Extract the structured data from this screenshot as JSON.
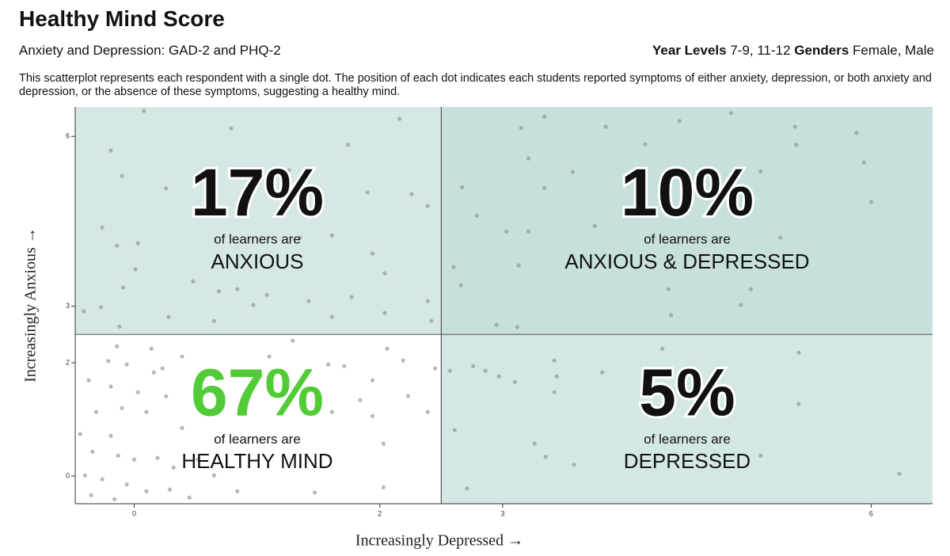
{
  "chart_data": {
    "type": "scatter",
    "title": "Healthy Mind Score",
    "subtitle": "Anxiety and Depression: GAD-2 and PHQ-2",
    "filters": [
      {
        "label": "Year Levels",
        "value": "7-9, 11-12"
      },
      {
        "label": "Genders",
        "value": "Female, Male"
      }
    ],
    "description": "This scatterplot represents each respondent with a single dot. The position of each dot indicates each students reported symptoms of either anxiety, depression, or both anxiety and depression, or the absence of these symptoms, suggesting a healthy mind.",
    "xlabel": "Increasingly Depressed →",
    "ylabel": "Increasingly Anxious →",
    "xlim": [
      -0.48,
      6.5
    ],
    "ylim": [
      -0.49,
      6.52
    ],
    "xticks": [
      0,
      2,
      3,
      6
    ],
    "yticks": [
      0,
      2,
      3,
      6
    ],
    "x_split": 2.5,
    "y_split": 2.5,
    "point_color": "#8a8a8a",
    "quadrants": {
      "positions": [
        "top-left",
        "top-right",
        "bottom-left",
        "bottom-right"
      ],
      "values": [
        17,
        10,
        67,
        5
      ],
      "value_labels": [
        "17%",
        "10%",
        "67%",
        "5%"
      ],
      "captions": [
        "of learners are",
        "of learners are",
        "of learners are",
        "of learners are"
      ],
      "labels": [
        "ANXIOUS",
        "ANXIOUS & DEPRESSED",
        "HEALTHY MIND",
        "DEPRESSED"
      ],
      "colors": [
        "#d6e8e6",
        "#c7e0dd",
        "#ffffff",
        "#d3e7e4"
      ],
      "value_colors": [
        "#111111",
        "#111111",
        "#52cc36",
        "#111111"
      ]
    },
    "x": [
      0.08,
      -0.19,
      -0.1,
      0.26,
      -0.26,
      -0.14,
      0.03,
      0.01,
      -0.09,
      -0.27,
      -0.41,
      -0.12,
      0.28,
      0.48,
      0.69,
      0.84,
      0.97,
      1.08,
      1.42,
      1.61,
      1.74,
      2.16,
      1.9,
      2.26,
      2.39,
      1.61,
      1.94,
      2.04,
      1.77,
      2.39,
      1.35,
      1.26,
      0.79,
      2.42,
      2.04,
      0.65,
      3.34,
      3.15,
      3.84,
      4.44,
      4.86,
      5.38,
      5.39,
      5.88,
      5.94,
      6.0,
      5.1,
      4.16,
      3.57,
      3.21,
      3.34,
      2.67,
      2.79,
      3.03,
      3.21,
      3.75,
      5.26,
      2.6,
      2.66,
      3.13,
      4.35,
      4.37,
      5.02,
      2.95,
      3.12,
      4.94,
      2.57,
      2.76,
      2.86,
      2.97,
      3.1,
      3.42,
      3.44,
      3.42,
      3.81,
      4.3,
      5.41,
      5.41,
      2.61,
      3.26,
      3.35,
      3.58,
      2.71,
      6.23,
      5.1,
      -0.14,
      -0.06,
      -0.21,
      0.14,
      0.39,
      0.16,
      -0.37,
      -0.19,
      0.03,
      0.23,
      -0.31,
      -0.1,
      0.1,
      0.26,
      0.39,
      -0.44,
      -0.19,
      -0.34,
      -0.13,
      0,
      0.19,
      0.32,
      -0.4,
      -0.26,
      -0.06,
      0.1,
      0.29,
      0.45,
      -0.35,
      -0.16,
      0.52,
      0.65,
      0.84,
      0.94,
      1.1,
      1.29,
      1.58,
      1.71,
      1.94,
      2.06,
      2.19,
      2.23,
      2.39,
      1.94,
      1.84,
      2.03,
      1.47,
      1.16,
      1.61,
      2.45,
      2.03
    ],
    "y": [
      6.45,
      5.75,
      5.3,
      5.08,
      4.39,
      4.07,
      4.11,
      3.65,
      3.33,
      2.98,
      2.91,
      2.64,
      2.81,
      3.44,
      3.26,
      3.3,
      3.02,
      3.2,
      3.09,
      2.81,
      5.85,
      6.31,
      5.01,
      4.98,
      4.77,
      4.25,
      3.93,
      3.58,
      3.16,
      3.09,
      4.21,
      5.4,
      6.14,
      2.74,
      2.88,
      2.74,
      6.35,
      6.15,
      6.17,
      6.27,
      6.41,
      6.17,
      5.85,
      6.06,
      5.54,
      4.84,
      5.38,
      5.86,
      5.37,
      5.61,
      5.09,
      5.1,
      4.6,
      4.32,
      4.32,
      4.42,
      4.21,
      3.69,
      3.37,
      3.72,
      3.3,
      2.84,
      3.3,
      2.67,
      2.63,
      3.02,
      1.86,
      1.94,
      1.86,
      1.76,
      1.66,
      2.04,
      1.76,
      1.48,
      1.83,
      2.25,
      2.18,
      1.27,
      0.81,
      0.57,
      0.34,
      0.2,
      -0.22,
      0.04,
      0.36,
      2.29,
      1.97,
      2.03,
      2.25,
      2.11,
      1.83,
      1.69,
      1.58,
      1.48,
      1.9,
      1.13,
      1.2,
      1.13,
      1.41,
      0.85,
      0.74,
      0.71,
      0.43,
      0.36,
      0.29,
      0.32,
      0.15,
      0.01,
      -0.06,
      -0.15,
      -0.27,
      -0.24,
      -0.38,
      -0.34,
      -0.41,
      0.29,
      0.01,
      -0.27,
      1.83,
      2.11,
      2.39,
      1.97,
      1.94,
      1.69,
      2.25,
      2.04,
      1.41,
      1.13,
      1.06,
      1.34,
      0.57,
      -0.29,
      1.41,
      1.13,
      1.9,
      -0.2
    ]
  }
}
